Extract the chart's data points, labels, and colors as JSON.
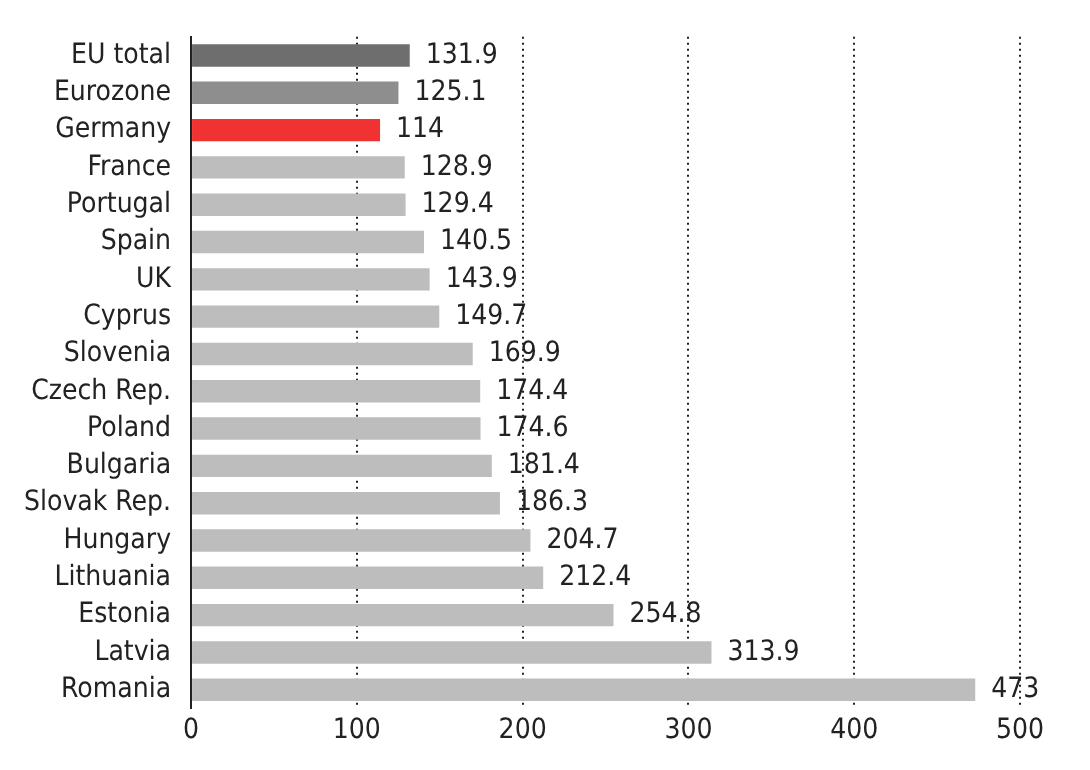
{
  "chart_data": {
    "type": "bar",
    "orientation": "horizontal",
    "categories": [
      "EU total",
      "Eurozone",
      "Germany",
      "France",
      "Portugal",
      "Spain",
      "UK",
      "Cyprus",
      "Slovenia",
      "Czech Rep.",
      "Poland",
      "Bulgaria",
      "Slovak Rep.",
      "Hungary",
      "Lithuania",
      "Estonia",
      "Latvia",
      "Romania"
    ],
    "values": [
      131.9,
      125.1,
      114,
      128.9,
      129.4,
      140.5,
      143.9,
      149.7,
      169.9,
      174.4,
      174.6,
      181.4,
      186.3,
      204.7,
      212.4,
      254.8,
      313.9,
      473
    ],
    "colors": [
      "#6e6e6e",
      "#8e8e8e",
      "#f03232",
      "#bdbdbd",
      "#bdbdbd",
      "#bdbdbd",
      "#bdbdbd",
      "#bdbdbd",
      "#bdbdbd",
      "#bdbdbd",
      "#bdbdbd",
      "#bdbdbd",
      "#bdbdbd",
      "#bdbdbd",
      "#bdbdbd",
      "#bdbdbd",
      "#bdbdbd",
      "#bdbdbd"
    ],
    "xlim": [
      0,
      500
    ],
    "xticks": [
      0,
      100,
      200,
      300,
      400,
      500
    ],
    "grid": "x",
    "data_labels": true,
    "legend": false
  }
}
